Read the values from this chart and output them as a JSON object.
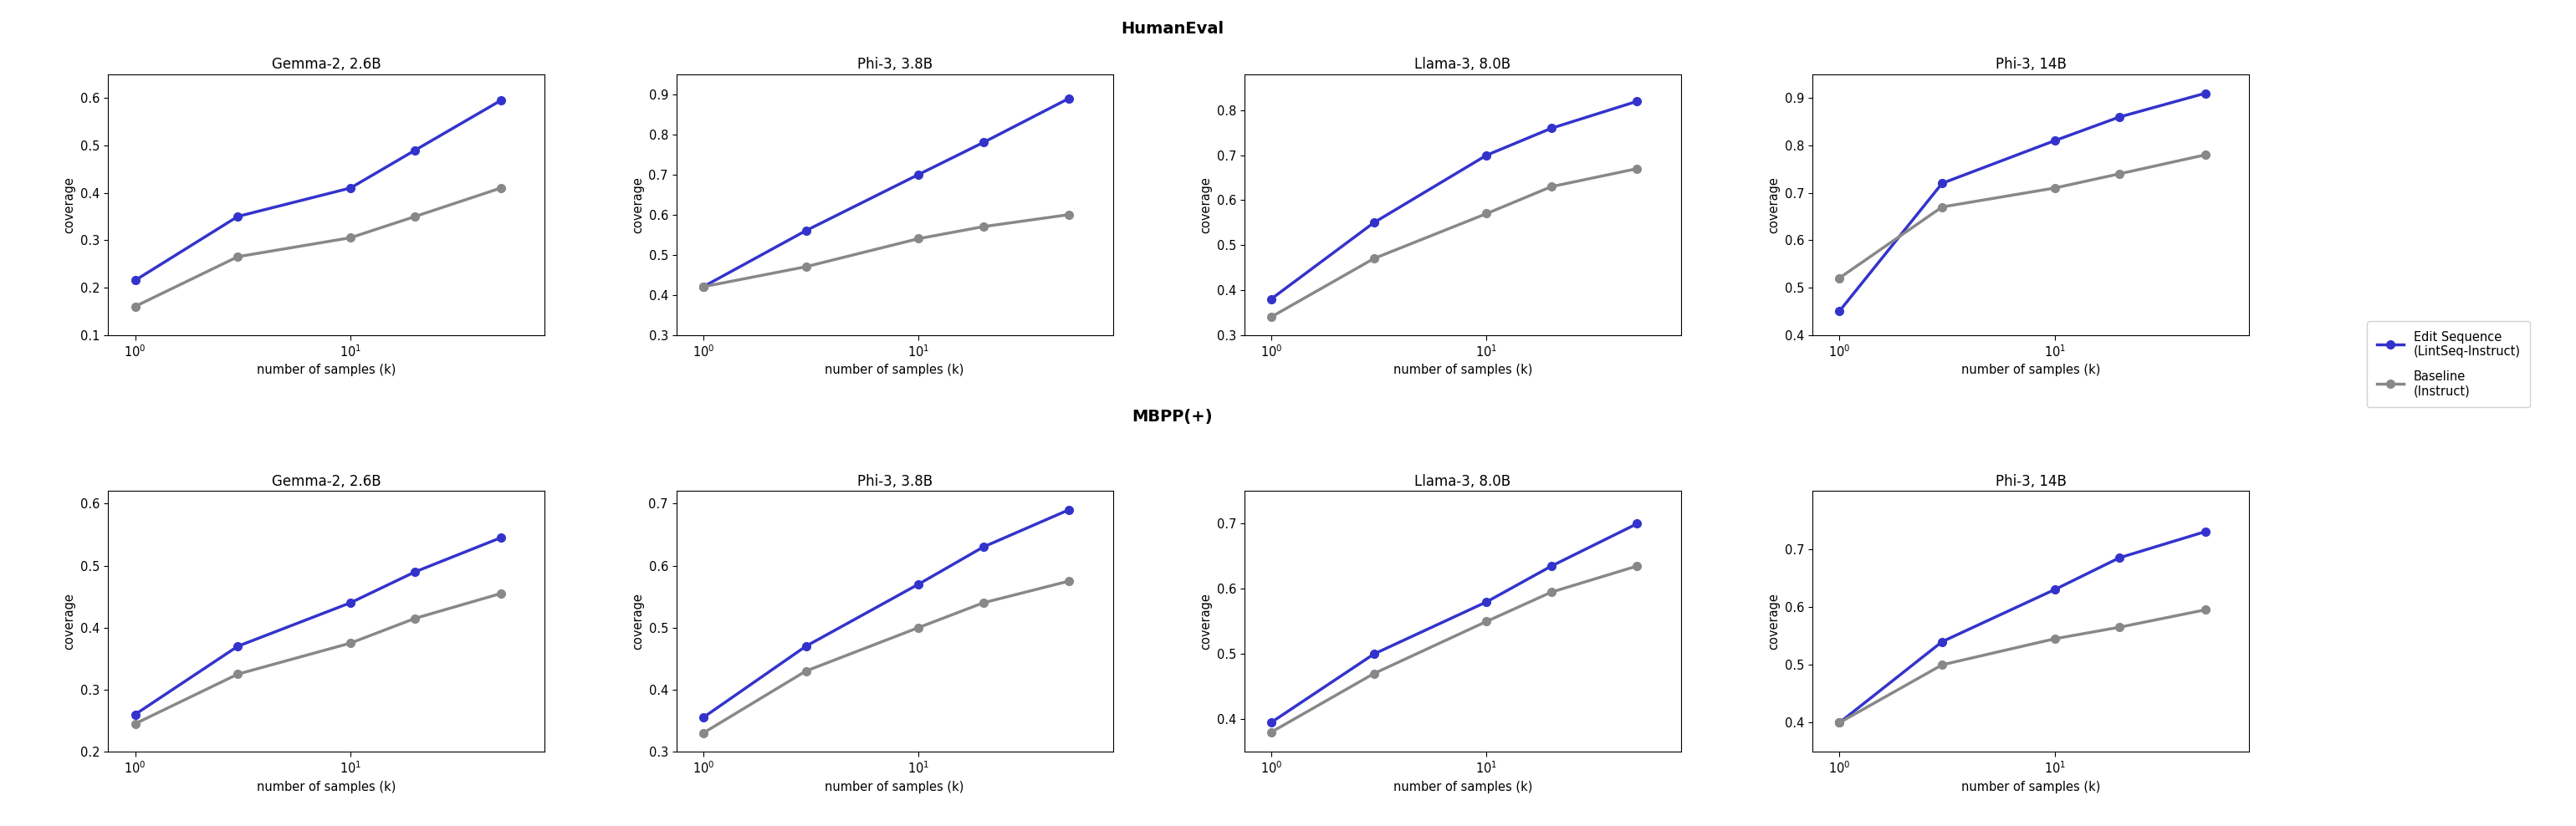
{
  "row_titles": [
    "HumanEval",
    "MBPP(+)"
  ],
  "col_titles": [
    "Gemma-2, 2.6B",
    "Phi-3, 3.8B",
    "Llama-3, 8.0B",
    "Phi-3, 14B"
  ],
  "x_values": [
    1,
    3,
    10,
    20,
    50
  ],
  "xlabel": "number of samples (k)",
  "ylabel": "coverage",
  "blue_color": "#3333CC",
  "gray_color": "#888888",
  "blue_label": "Edit Sequence\n(LintSeq-Instruct)",
  "gray_label": "Baseline\n(Instruct)",
  "line_width": 2.5,
  "marker": "o",
  "marker_size": 7,
  "humaneval": {
    "gemma2_2.6b": {
      "blue": [
        0.215,
        0.35,
        0.41,
        0.49,
        0.595
      ],
      "gray": [
        0.16,
        0.265,
        0.305,
        0.35,
        0.41
      ],
      "ylim": [
        0.1,
        0.65
      ],
      "yticks": [
        0.1,
        0.2,
        0.3,
        0.4,
        0.5,
        0.6
      ]
    },
    "phi3_3.8b": {
      "blue": [
        0.42,
        0.56,
        0.7,
        0.78,
        0.89
      ],
      "gray": [
        0.42,
        0.47,
        0.54,
        0.57,
        0.6
      ],
      "ylim": [
        0.3,
        0.95
      ],
      "yticks": [
        0.3,
        0.4,
        0.5,
        0.6,
        0.7,
        0.8,
        0.9
      ]
    },
    "llama3_8.0b": {
      "blue": [
        0.38,
        0.55,
        0.7,
        0.76,
        0.82
      ],
      "gray": [
        0.34,
        0.47,
        0.57,
        0.63,
        0.67
      ],
      "ylim": [
        0.3,
        0.88
      ],
      "yticks": [
        0.3,
        0.4,
        0.5,
        0.6,
        0.7,
        0.8
      ]
    },
    "phi3_14b": {
      "blue": [
        0.45,
        0.72,
        0.81,
        0.86,
        0.91
      ],
      "gray": [
        0.52,
        0.67,
        0.71,
        0.74,
        0.78
      ],
      "ylim": [
        0.4,
        0.95
      ],
      "yticks": [
        0.4,
        0.5,
        0.6,
        0.7,
        0.8,
        0.9
      ]
    }
  },
  "mbpp": {
    "gemma2_2.6b": {
      "blue": [
        0.26,
        0.37,
        0.44,
        0.49,
        0.545
      ],
      "gray": [
        0.245,
        0.325,
        0.375,
        0.415,
        0.455
      ],
      "ylim": [
        0.2,
        0.62
      ],
      "yticks": [
        0.2,
        0.3,
        0.4,
        0.5,
        0.6
      ]
    },
    "phi3_3.8b": {
      "blue": [
        0.355,
        0.47,
        0.57,
        0.63,
        0.69
      ],
      "gray": [
        0.33,
        0.43,
        0.5,
        0.54,
        0.575
      ],
      "ylim": [
        0.3,
        0.72
      ],
      "yticks": [
        0.3,
        0.4,
        0.5,
        0.6,
        0.7
      ]
    },
    "llama3_8.0b": {
      "blue": [
        0.395,
        0.5,
        0.58,
        0.635,
        0.7
      ],
      "gray": [
        0.38,
        0.47,
        0.55,
        0.595,
        0.635
      ],
      "ylim": [
        0.35,
        0.75
      ],
      "yticks": [
        0.4,
        0.5,
        0.6,
        0.7
      ]
    },
    "phi3_14b": {
      "blue": [
        0.4,
        0.54,
        0.63,
        0.685,
        0.73
      ],
      "gray": [
        0.4,
        0.5,
        0.545,
        0.565,
        0.595
      ],
      "ylim": [
        0.35,
        0.8
      ],
      "yticks": [
        0.4,
        0.5,
        0.6,
        0.7
      ]
    }
  }
}
